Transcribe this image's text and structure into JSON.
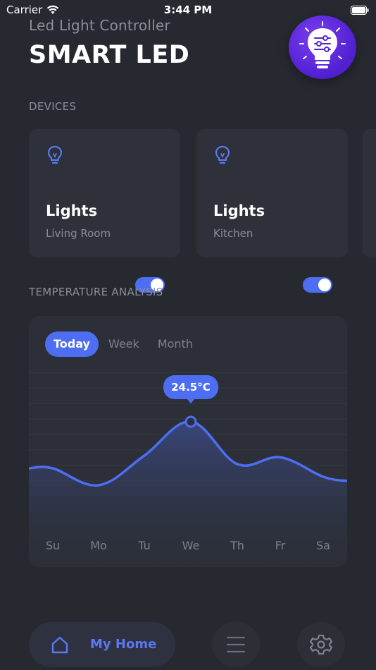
{
  "status_bar": {
    "carrier": "Carrier",
    "time": "3:44 PM"
  },
  "header": {
    "subtitle": "Led Light Controller",
    "title": "SMART LED",
    "logo_icon": "lightbulb-sliders-icon"
  },
  "devices": {
    "section_label": "DEVICES",
    "items": [
      {
        "name": "Lights",
        "room": "Living Room",
        "icon": "lightbulb-icon",
        "on": true
      },
      {
        "name": "Lights",
        "room": "Kitchen",
        "icon": "lightbulb-icon",
        "on": true
      }
    ]
  },
  "temperature": {
    "section_label": "TEMPERATURE ANALYSIS",
    "tabs": [
      {
        "label": "Today",
        "active": true
      },
      {
        "label": "Week",
        "active": false
      },
      {
        "label": "Month",
        "active": false
      }
    ],
    "tooltip": "24.5°C"
  },
  "chart_data": {
    "type": "area",
    "categories": [
      "Su",
      "Mo",
      "Tu",
      "We",
      "Th",
      "Fr",
      "Sa"
    ],
    "series": [
      {
        "values": [
          0.45,
          0.25,
          0.6,
          1.0,
          0.5,
          0.58,
          0.35
        ]
      }
    ],
    "highlight": {
      "category": "We",
      "label": "24.5°C"
    },
    "grid": true
  },
  "bottom_nav": {
    "home_label": "My Home",
    "home_icon": "home-icon",
    "menu_icon": "menu-icon",
    "settings_icon": "gear-icon"
  },
  "colors": {
    "accent": "#4d6ef2",
    "background": "#262930",
    "card": "#2e3139"
  }
}
